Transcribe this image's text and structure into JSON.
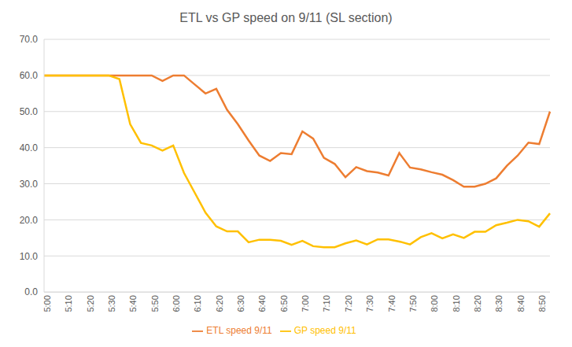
{
  "chart_data": {
    "type": "line",
    "title": "ETL vs GP speed on 9/11 (SL section)",
    "categories": [
      "5:00",
      null,
      "5:10",
      null,
      "5:20",
      null,
      "5:30",
      null,
      "5:40",
      null,
      "5:50",
      null,
      "6:00",
      null,
      "6:10",
      null,
      "6:20",
      null,
      "6:30",
      null,
      "6:40",
      null,
      "6:50",
      null,
      "7:00",
      null,
      "7:10",
      null,
      "7:20",
      null,
      "7:30",
      null,
      "7:40",
      null,
      "7:50",
      null,
      "8:00",
      null,
      "8:10",
      null,
      "8:20",
      null,
      "8:30",
      null,
      "8:40",
      null,
      "8:50",
      null
    ],
    "series": [
      {
        "name": "ETL speed 9/11",
        "color": "#ED7D31",
        "values": [
          60,
          60,
          60,
          60,
          60,
          60,
          60,
          60,
          60,
          60,
          60,
          58.5,
          60,
          60,
          57.5,
          55,
          56.3,
          50.5,
          46.5,
          42,
          37.8,
          36.3,
          38.5,
          38.2,
          44.5,
          42.5,
          37.2,
          35.5,
          31.8,
          34.6,
          33.5,
          33.1,
          32.3,
          38.5,
          34.5,
          34,
          33.2,
          32.5,
          31,
          29.2,
          29.2,
          30,
          31.5,
          35,
          37.8,
          41.4,
          41,
          50
        ]
      },
      {
        "name": "GP speed 9/11",
        "color": "#FFC000",
        "values": [
          60,
          60,
          60,
          60,
          60,
          60,
          60,
          59,
          46.5,
          41.3,
          40.6,
          39.2,
          40.6,
          33,
          27.5,
          22,
          18.2,
          16.8,
          16.8,
          13.8,
          14.5,
          14.5,
          14.2,
          13.1,
          14.2,
          12.7,
          12.4,
          12.4,
          13.5,
          14.3,
          13.2,
          14.6,
          14.6,
          14,
          13.2,
          15.2,
          16.3,
          14.9,
          16,
          15,
          16.7,
          16.7,
          18.5,
          19.2,
          20,
          19.6,
          18.1,
          21.8
        ]
      }
    ],
    "ylim": [
      0,
      70
    ],
    "yticks": [
      {
        "value": 0,
        "label": "0.0"
      },
      {
        "value": 10,
        "label": "10.0"
      },
      {
        "value": 20,
        "label": "20.0"
      },
      {
        "value": 30,
        "label": "30.0"
      },
      {
        "value": 40,
        "label": "40.0"
      },
      {
        "value": 50,
        "label": "50.0"
      },
      {
        "value": 60,
        "label": "60.0"
      },
      {
        "value": 70,
        "label": "70.0"
      }
    ],
    "grid": true,
    "legend": "bottom"
  }
}
